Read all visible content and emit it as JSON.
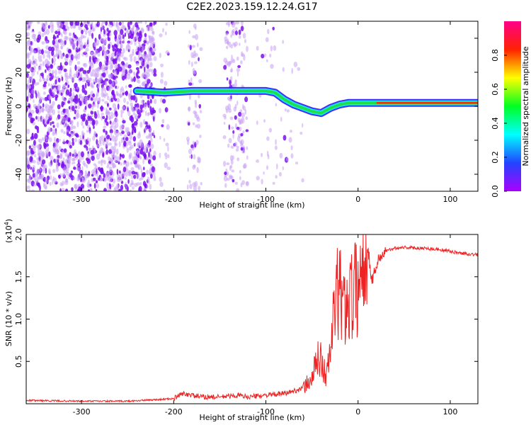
{
  "title": "C2E2.2023.159.12.24.G17",
  "chart_data": [
    {
      "type": "heatmap",
      "title": "C2E2.2023.159.12.24.G17",
      "xlabel": "Height of straight line (km)",
      "ylabel": "Frequency (Hz)",
      "xlim": [
        -360,
        130
      ],
      "ylim": [
        -50,
        50
      ],
      "xticks": [
        -300,
        -200,
        -100,
        0,
        100
      ],
      "yticks": [
        -40,
        -20,
        0,
        20,
        40
      ],
      "colorbar": {
        "label": "Normalized spectral amplitude",
        "range": [
          0.0,
          1.0
        ],
        "ticks": [
          "0.0",
          "0.2",
          "0.4",
          "0.6",
          "0.8"
        ],
        "colormap": [
          "#aa00ff",
          "#2244ff",
          "#00ffff",
          "#00ff22",
          "#ffff00",
          "#ff2200",
          "#ff0088"
        ]
      },
      "ridge": {
        "x": [
          -240,
          -210,
          -180,
          -150,
          -120,
          -100,
          -90,
          -80,
          -70,
          -60,
          -50,
          -40,
          -30,
          -20,
          -10,
          0,
          20,
          50,
          80,
          110,
          130
        ],
        "y": [
          9,
          8,
          9,
          9,
          9,
          9,
          8,
          4,
          1,
          -1,
          -3,
          -4,
          -1,
          1,
          2,
          2,
          2,
          2,
          2,
          2,
          2
        ]
      },
      "grid": false
    },
    {
      "type": "line",
      "xlabel": "Height of straight line (km)",
      "ylabel": "SNR (10 * v/v)",
      "y_scale_label": "(x10",
      "y_scale_exp": "4",
      "y_scale_suffix": ")",
      "xlim": [
        -360,
        130
      ],
      "ylim": [
        0,
        2.0
      ],
      "xticks": [
        -300,
        -200,
        -100,
        0,
        100
      ],
      "yticks": [
        "0.5",
        "1.0",
        "1.5",
        "2.0"
      ],
      "series": [
        {
          "color": "#ee2222",
          "x": [
            -360,
            -300,
            -250,
            -200,
            -190,
            -180,
            -170,
            -150,
            -130,
            -120,
            -100,
            -80,
            -60,
            -50,
            -45,
            -40,
            -35,
            -30,
            -25,
            -20,
            -15,
            -10,
            -5,
            0,
            5,
            10,
            15,
            20,
            25,
            30,
            40,
            50,
            60,
            70,
            80,
            90,
            100,
            110,
            120,
            130
          ],
          "y": [
            0.04,
            0.03,
            0.03,
            0.06,
            0.12,
            0.1,
            0.08,
            0.08,
            0.1,
            0.08,
            0.1,
            0.12,
            0.18,
            0.3,
            0.5,
            0.55,
            0.3,
            0.6,
            1.2,
            1.35,
            1.1,
            1.3,
            1.3,
            1.4,
            1.6,
            1.9,
            1.45,
            1.65,
            1.75,
            1.8,
            1.84,
            1.85,
            1.84,
            1.84,
            1.83,
            1.82,
            1.8,
            1.78,
            1.77,
            1.76
          ]
        }
      ],
      "grid": false
    }
  ]
}
